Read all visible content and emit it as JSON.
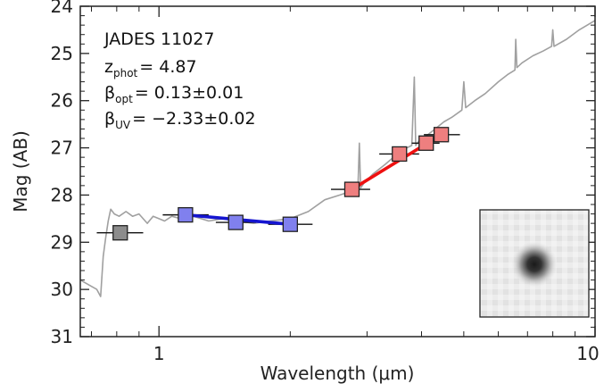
{
  "chart_data": {
    "type": "scatter",
    "xscale": "log",
    "xlim": [
      0.66,
      10
    ],
    "ylim": [
      31,
      24
    ],
    "xlabel": "Wavelength (μm)",
    "ylabel": "Mag (AB)",
    "x_ticks": [
      1,
      10
    ],
    "x_tick_labels": [
      "1",
      "10"
    ],
    "y_ticks": [
      24,
      25,
      26,
      27,
      28,
      29,
      30,
      31
    ],
    "y_tick_labels": [
      "24",
      "25",
      "26",
      "27",
      "28",
      "29",
      "30",
      "31"
    ],
    "annotations": {
      "object": "JADES 11027",
      "z_label": "z",
      "z_sub": "phot",
      "z_value": "= 4.87",
      "bopt_label": "β",
      "bopt_sub": "opt",
      "bopt_value": "= 0.13±0.01",
      "buv_label": "β",
      "buv_sub": "UV",
      "buv_value": "= −2.33±0.02"
    },
    "colors": {
      "model": "#a0a0a0",
      "uv_points": "#8080ee",
      "opt_points": "#ee7f7f",
      "other_points": "#8c8c8c",
      "uv_fit": "#1515d0",
      "opt_fit": "#ee1010"
    },
    "photometry": [
      {
        "x": 0.815,
        "y": 28.8,
        "xerr": [
          0.72,
          0.92
        ],
        "group": "other"
      },
      {
        "x": 1.15,
        "y": 28.42,
        "xerr": [
          1.02,
          1.3
        ],
        "group": "uv"
      },
      {
        "x": 1.5,
        "y": 28.58,
        "xerr": [
          1.35,
          1.67
        ],
        "group": "uv"
      },
      {
        "x": 2.0,
        "y": 28.62,
        "xerr": [
          1.78,
          2.25
        ],
        "group": "uv"
      },
      {
        "x": 2.77,
        "y": 27.88,
        "xerr": [
          2.48,
          3.05
        ],
        "group": "opt"
      },
      {
        "x": 3.56,
        "y": 27.13,
        "xerr": [
          3.2,
          3.95
        ],
        "group": "opt"
      },
      {
        "x": 4.1,
        "y": 26.9,
        "xerr": [
          3.8,
          4.4
        ],
        "group": "opt"
      },
      {
        "x": 4.44,
        "y": 26.72,
        "xerr": [
          4.05,
          4.9
        ],
        "group": "opt"
      }
    ],
    "fits": [
      {
        "group": "uv",
        "x": [
          1.15,
          2.0
        ],
        "y": [
          28.42,
          28.62
        ]
      },
      {
        "group": "opt",
        "x": [
          2.77,
          4.44
        ],
        "y": [
          27.88,
          26.72
        ]
      }
    ],
    "model_spectrum": {
      "x": [
        0.66,
        0.69,
        0.72,
        0.735,
        0.745,
        0.755,
        0.765,
        0.775,
        0.79,
        0.81,
        0.84,
        0.87,
        0.9,
        0.94,
        0.97,
        1.0,
        1.03,
        1.07,
        1.12,
        1.2,
        1.3,
        1.4,
        1.5,
        1.65,
        1.8,
        2.0,
        2.2,
        2.4,
        2.6,
        2.8,
        2.86,
        2.88,
        2.9,
        2.95,
        3.1,
        3.3,
        3.5,
        3.7,
        3.8,
        3.85,
        3.88,
        3.95,
        4.1,
        4.3,
        4.5,
        4.7,
        4.95,
        5.0,
        5.05,
        5.3,
        5.6,
        6.0,
        6.3,
        6.55,
        6.58,
        6.62,
        6.8,
        7.2,
        7.6,
        7.95,
        8.0,
        8.05,
        8.6,
        9.2,
        10.0
      ],
      "y": [
        29.8,
        29.9,
        30.0,
        30.15,
        29.3,
        28.9,
        28.55,
        28.3,
        28.4,
        28.45,
        28.35,
        28.45,
        28.4,
        28.6,
        28.45,
        28.5,
        28.55,
        28.45,
        28.5,
        28.45,
        28.55,
        28.5,
        28.55,
        28.6,
        28.55,
        28.5,
        28.35,
        28.1,
        28.0,
        27.9,
        27.8,
        26.9,
        27.85,
        27.75,
        27.55,
        27.35,
        27.15,
        27.0,
        26.95,
        25.5,
        26.95,
        26.85,
        26.75,
        26.6,
        26.45,
        26.35,
        26.2,
        25.6,
        26.15,
        26.0,
        25.85,
        25.6,
        25.45,
        25.35,
        24.7,
        25.3,
        25.2,
        25.05,
        24.95,
        24.85,
        24.5,
        24.85,
        24.7,
        24.5,
        24.3
      ]
    }
  }
}
